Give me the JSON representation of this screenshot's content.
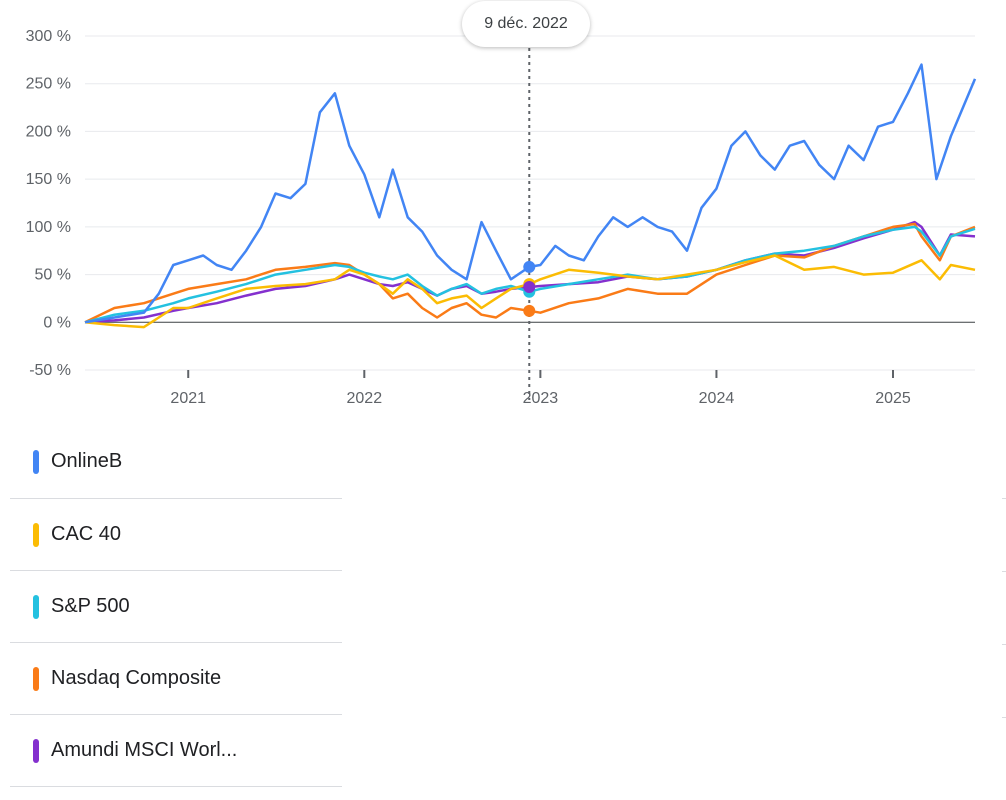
{
  "chart_data": {
    "type": "line",
    "y_unit": "%",
    "ylim": [
      -50,
      300
    ],
    "y_ticks": [
      -50,
      0,
      50,
      100,
      150,
      200,
      250,
      300
    ],
    "y_tick_labels": [
      "-50 %",
      "0 %",
      "50 %",
      "100 %",
      "150 %",
      "200 %",
      "250 %",
      "300 %"
    ],
    "xlim": [
      "2020-06-01",
      "2025-06-20"
    ],
    "x_ticks": [
      "2021-01-01",
      "2022-01-01",
      "2023-01-01",
      "2024-01-01",
      "2025-01-01"
    ],
    "x_tick_labels": [
      "2021",
      "2022",
      "2023",
      "2024",
      "2025"
    ],
    "grid": true,
    "hover": {
      "date": "2022-12-09",
      "label": "9 déc. 2022"
    },
    "series": [
      {
        "name": "OnlineB",
        "color": "#4285f4",
        "x": [
          "2020-06-01",
          "2020-08-01",
          "2020-10-01",
          "2020-11-01",
          "2020-12-01",
          "2021-01-01",
          "2021-02-01",
          "2021-03-01",
          "2021-04-01",
          "2021-05-01",
          "2021-06-01",
          "2021-07-01",
          "2021-08-01",
          "2021-09-01",
          "2021-10-01",
          "2021-11-01",
          "2021-12-01",
          "2022-01-01",
          "2022-02-01",
          "2022-03-01",
          "2022-04-01",
          "2022-05-01",
          "2022-06-01",
          "2022-07-01",
          "2022-08-01",
          "2022-09-01",
          "2022-10-01",
          "2022-11-01",
          "2022-12-09",
          "2023-01-01",
          "2023-02-01",
          "2023-03-01",
          "2023-04-01",
          "2023-05-01",
          "2023-06-01",
          "2023-07-01",
          "2023-08-01",
          "2023-09-01",
          "2023-10-01",
          "2023-11-01",
          "2023-12-01",
          "2024-01-01",
          "2024-02-01",
          "2024-03-01",
          "2024-04-01",
          "2024-05-01",
          "2024-06-01",
          "2024-07-01",
          "2024-08-01",
          "2024-09-01",
          "2024-10-01",
          "2024-11-01",
          "2024-12-01",
          "2025-01-01",
          "2025-02-01",
          "2025-03-01",
          "2025-04-01",
          "2025-05-01",
          "2025-06-20"
        ],
        "values": [
          0,
          5,
          10,
          30,
          60,
          65,
          70,
          60,
          55,
          75,
          100,
          135,
          130,
          145,
          220,
          240,
          185,
          155,
          110,
          160,
          110,
          95,
          70,
          55,
          45,
          105,
          75,
          45,
          58,
          60,
          80,
          70,
          65,
          90,
          110,
          100,
          110,
          100,
          95,
          75,
          120,
          140,
          185,
          200,
          175,
          160,
          185,
          190,
          165,
          150,
          185,
          170,
          205,
          210,
          240,
          270,
          150,
          195,
          255
        ]
      },
      {
        "name": "CAC 40",
        "color": "#fbbc04",
        "x": [
          "2020-06-01",
          "2020-08-01",
          "2020-10-01",
          "2020-11-01",
          "2020-12-01",
          "2021-01-01",
          "2021-03-01",
          "2021-05-01",
          "2021-07-01",
          "2021-09-01",
          "2021-11-01",
          "2021-12-01",
          "2022-01-01",
          "2022-02-01",
          "2022-03-01",
          "2022-04-01",
          "2022-05-01",
          "2022-06-01",
          "2022-07-01",
          "2022-08-01",
          "2022-09-01",
          "2022-10-01",
          "2022-11-01",
          "2022-12-09",
          "2023-01-01",
          "2023-03-01",
          "2023-05-01",
          "2023-07-01",
          "2023-09-01",
          "2023-11-01",
          "2024-01-01",
          "2024-03-01",
          "2024-05-01",
          "2024-07-01",
          "2024-09-01",
          "2024-11-01",
          "2025-01-01",
          "2025-03-01",
          "2025-04-08",
          "2025-05-01",
          "2025-06-20"
        ],
        "values": [
          0,
          -3,
          -5,
          5,
          15,
          15,
          25,
          35,
          38,
          40,
          45,
          55,
          50,
          40,
          30,
          45,
          35,
          20,
          25,
          28,
          15,
          25,
          35,
          40,
          45,
          55,
          52,
          48,
          45,
          50,
          55,
          63,
          70,
          55,
          58,
          50,
          52,
          65,
          45,
          60,
          55
        ]
      },
      {
        "name": "S&P 500",
        "color": "#24c1e0",
        "x": [
          "2020-06-01",
          "2020-08-01",
          "2020-10-01",
          "2020-12-01",
          "2021-01-01",
          "2021-03-01",
          "2021-05-01",
          "2021-07-01",
          "2021-09-01",
          "2021-11-01",
          "2021-12-01",
          "2022-01-01",
          "2022-02-01",
          "2022-03-01",
          "2022-04-01",
          "2022-05-01",
          "2022-06-01",
          "2022-07-01",
          "2022-08-01",
          "2022-09-01",
          "2022-10-01",
          "2022-11-01",
          "2022-12-09",
          "2023-01-01",
          "2023-03-01",
          "2023-05-01",
          "2023-07-01",
          "2023-09-01",
          "2023-11-01",
          "2024-01-01",
          "2024-03-01",
          "2024-05-01",
          "2024-07-01",
          "2024-09-01",
          "2024-11-01",
          "2025-01-01",
          "2025-02-15",
          "2025-03-01",
          "2025-04-08",
          "2025-05-01",
          "2025-06-20"
        ],
        "values": [
          0,
          8,
          12,
          20,
          25,
          32,
          40,
          50,
          55,
          60,
          58,
          52,
          48,
          45,
          50,
          38,
          28,
          35,
          40,
          30,
          35,
          38,
          32,
          35,
          40,
          45,
          50,
          45,
          48,
          55,
          65,
          72,
          75,
          80,
          90,
          97,
          100,
          95,
          70,
          90,
          98
        ]
      },
      {
        "name": "Nasdaq Composite",
        "color": "#fa7b17",
        "x": [
          "2020-06-01",
          "2020-08-01",
          "2020-10-01",
          "2020-12-01",
          "2021-01-01",
          "2021-03-01",
          "2021-05-01",
          "2021-07-01",
          "2021-09-01",
          "2021-11-01",
          "2021-12-01",
          "2022-01-01",
          "2022-02-01",
          "2022-03-01",
          "2022-04-01",
          "2022-05-01",
          "2022-06-01",
          "2022-07-01",
          "2022-08-01",
          "2022-09-01",
          "2022-10-01",
          "2022-11-01",
          "2022-12-09",
          "2023-01-01",
          "2023-03-01",
          "2023-05-01",
          "2023-07-01",
          "2023-09-01",
          "2023-11-01",
          "2024-01-01",
          "2024-03-01",
          "2024-05-01",
          "2024-07-01",
          "2024-09-01",
          "2024-11-01",
          "2025-01-01",
          "2025-02-15",
          "2025-03-01",
          "2025-04-08",
          "2025-05-01",
          "2025-06-20"
        ],
        "values": [
          0,
          15,
          20,
          30,
          35,
          40,
          45,
          55,
          58,
          62,
          60,
          50,
          40,
          25,
          30,
          15,
          5,
          15,
          20,
          8,
          5,
          15,
          12,
          10,
          20,
          25,
          35,
          30,
          30,
          50,
          60,
          70,
          68,
          80,
          90,
          100,
          103,
          90,
          65,
          90,
          100
        ]
      },
      {
        "name": "Amundi MSCI Worl...",
        "color": "#8430ce",
        "x": [
          "2020-06-01",
          "2020-08-01",
          "2020-10-01",
          "2020-12-01",
          "2021-01-01",
          "2021-03-01",
          "2021-05-01",
          "2021-07-01",
          "2021-09-01",
          "2021-11-01",
          "2021-12-01",
          "2022-01-01",
          "2022-02-01",
          "2022-03-01",
          "2022-04-01",
          "2022-05-01",
          "2022-06-01",
          "2022-07-01",
          "2022-08-01",
          "2022-09-01",
          "2022-10-01",
          "2022-11-01",
          "2022-12-09",
          "2023-01-01",
          "2023-03-01",
          "2023-05-01",
          "2023-07-01",
          "2023-09-01",
          "2023-11-01",
          "2024-01-01",
          "2024-03-01",
          "2024-05-01",
          "2024-07-01",
          "2024-09-01",
          "2024-11-01",
          "2025-01-01",
          "2025-02-15",
          "2025-03-01",
          "2025-04-08",
          "2025-05-01",
          "2025-06-20"
        ],
        "values": [
          0,
          2,
          5,
          12,
          15,
          20,
          28,
          35,
          38,
          45,
          50,
          45,
          40,
          38,
          42,
          35,
          28,
          35,
          38,
          30,
          32,
          35,
          37,
          38,
          40,
          42,
          48,
          45,
          48,
          55,
          65,
          72,
          70,
          78,
          88,
          97,
          105,
          100,
          70,
          92,
          90
        ]
      }
    ]
  }
}
